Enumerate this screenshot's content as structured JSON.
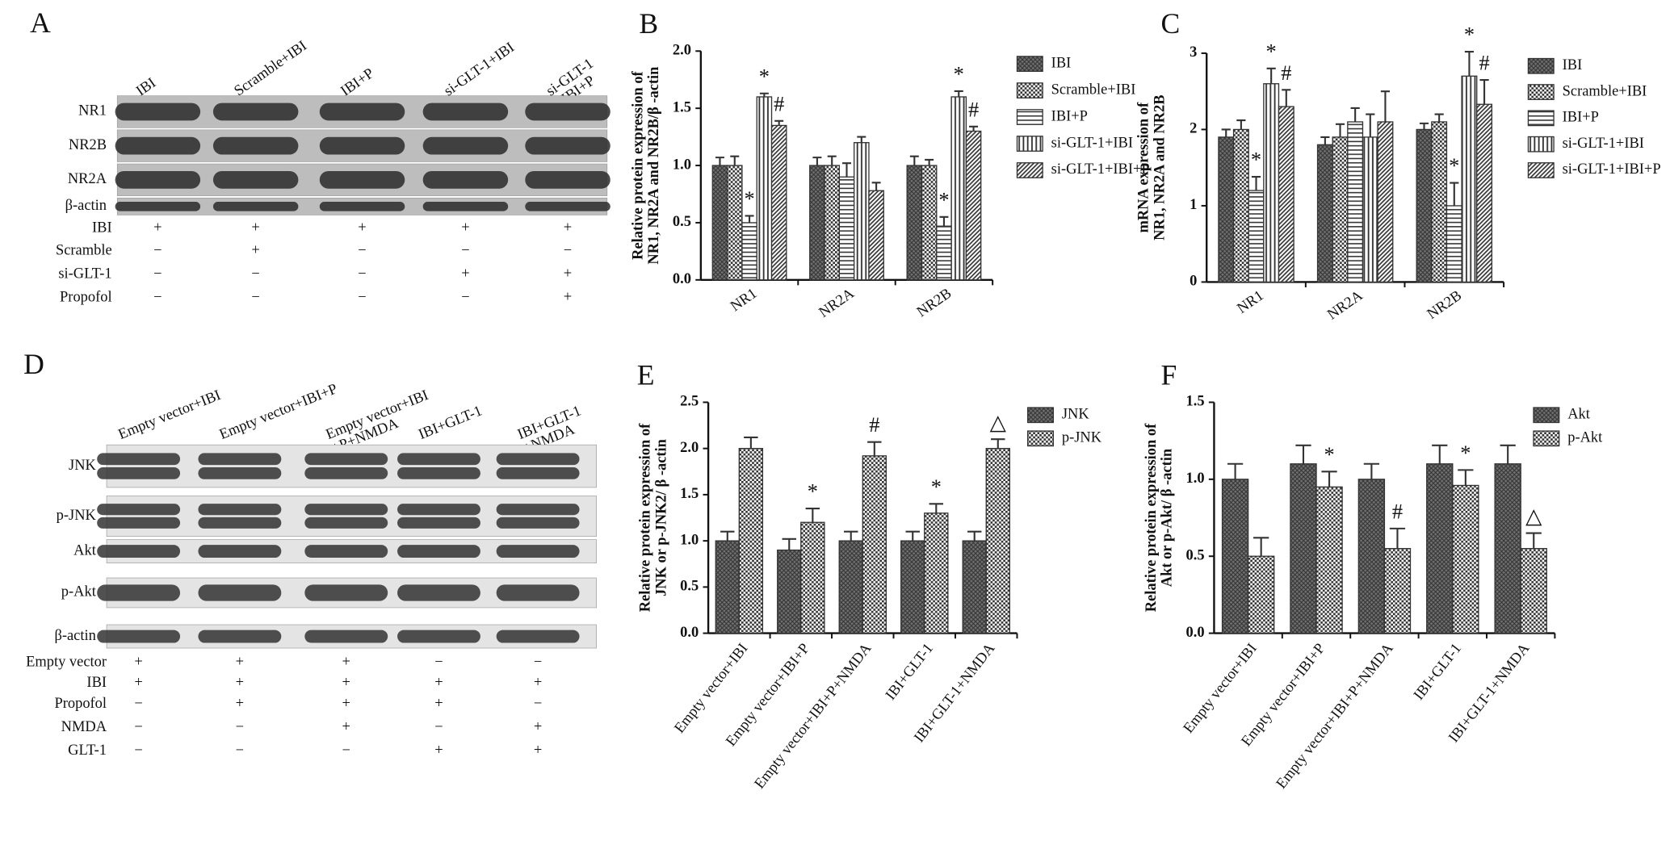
{
  "blot_panels": [
    {
      "panel": "A",
      "lanes": [
        [
          "IBI"
        ],
        [
          "Scramble+IBI"
        ],
        [
          "IBI+P"
        ],
        [
          "si-GLT-1+IBI"
        ],
        [
          "si-GLT-1",
          "+IBI+P"
        ]
      ],
      "rows": [
        "NR1",
        "NR2B",
        "NR2A",
        "β-actin"
      ],
      "treatments": [
        {
          "label": "IBI",
          "signs": [
            "+",
            "+",
            "+",
            "+",
            "+"
          ]
        },
        {
          "label": "Scramble",
          "signs": [
            "−",
            "+",
            "−",
            "−",
            "−"
          ]
        },
        {
          "label": "si-GLT-1",
          "signs": [
            "−",
            "−",
            "−",
            "+",
            "+"
          ]
        },
        {
          "label": "Propofol",
          "signs": [
            "−",
            "−",
            "−",
            "−",
            "+"
          ]
        }
      ]
    },
    {
      "panel": "D",
      "lanes": [
        [
          "Empty vector+IBI"
        ],
        [
          "Empty vector+IBI+P"
        ],
        [
          "Empty vector+IBI",
          "+P+NMDA"
        ],
        [
          "IBI+GLT-1"
        ],
        [
          "IBI+GLT-1",
          "+NMDA"
        ]
      ],
      "rows": [
        "JNK",
        "p-JNK",
        "Akt",
        "p-Akt",
        "β-actin"
      ],
      "treatments": [
        {
          "label": "Empty vector",
          "signs": [
            "+",
            "+",
            "+",
            "−",
            "−"
          ]
        },
        {
          "label": "IBI",
          "signs": [
            "+",
            "+",
            "+",
            "+",
            "+"
          ]
        },
        {
          "label": "Propofol",
          "signs": [
            "−",
            "+",
            "+",
            "+",
            "−"
          ]
        },
        {
          "label": "NMDA",
          "signs": [
            "−",
            "−",
            "+",
            "−",
            "+"
          ]
        },
        {
          "label": "GLT-1",
          "signs": [
            "−",
            "−",
            "−",
            "+",
            "+"
          ]
        }
      ]
    }
  ],
  "chart_data": [
    {
      "panel": "B",
      "type": "bar",
      "legend": "right",
      "ylabel": [
        "Relative protein expression of",
        "NR1, NR2A and NR2B/β -actin"
      ],
      "categories": [
        "NR1",
        "NR2A",
        "NR2B"
      ],
      "ylim": [
        0,
        2
      ],
      "yticks": [
        {
          "value": 0,
          "label": "0.0"
        },
        0.5,
        {
          "value": 1,
          "label": "1.0"
        },
        1.5,
        {
          "value": 2,
          "label": "2.0"
        }
      ],
      "series": [
        {
          "name": "IBI",
          "color": "#333333",
          "pattern": "crosshatch",
          "values": [
            1.0,
            1.0,
            1.0
          ],
          "errors": [
            0.07,
            0.07,
            0.08
          ]
        },
        {
          "name": "Scramble+IBI",
          "color": "#333333",
          "pattern": "checker",
          "values": [
            1.0,
            1.0,
            1.0
          ],
          "errors": [
            0.08,
            0.08,
            0.05
          ]
        },
        {
          "name": "IBI+P",
          "color": "#333333",
          "pattern": "horizontal",
          "values": [
            0.5,
            0.9,
            0.47
          ],
          "errors": [
            0.06,
            0.12,
            0.08
          ],
          "annotations": [
            "*",
            null,
            "*"
          ]
        },
        {
          "name": "si-GLT-1+IBI",
          "color": "#333333",
          "pattern": "vertical",
          "values": [
            1.6,
            1.2,
            1.6
          ],
          "errors": [
            0.03,
            0.05,
            0.05
          ],
          "annotations": [
            "*",
            null,
            "*"
          ]
        },
        {
          "name": "si-GLT-1+IBI+P",
          "color": "#333333",
          "pattern": "diagonal",
          "values": [
            1.35,
            0.78,
            1.3
          ],
          "errors": [
            0.04,
            0.07,
            0.04
          ],
          "annotations": [
            "#",
            null,
            "#"
          ]
        }
      ]
    },
    {
      "panel": "C",
      "type": "bar",
      "legend": "right",
      "ylabel": [
        "mRNA expression of",
        "NR1, NR2A and NR2B"
      ],
      "categories": [
        "NR1",
        "NR2A",
        "NR2B"
      ],
      "ylim": [
        0,
        3
      ],
      "yticks": [
        0,
        1,
        2,
        3
      ],
      "series": [
        {
          "name": "IBI",
          "color": "#333333",
          "pattern": "crosshatch",
          "values": [
            1.9,
            1.8,
            2.0
          ],
          "errors": [
            0.1,
            0.1,
            0.08
          ]
        },
        {
          "name": "Scramble+IBI",
          "color": "#333333",
          "pattern": "checker",
          "values": [
            2.0,
            1.9,
            2.1
          ],
          "errors": [
            0.12,
            0.17,
            0.1
          ]
        },
        {
          "name": "IBI+P",
          "color": "#333333",
          "pattern": "horizontal",
          "values": [
            1.2,
            2.1,
            1.0
          ],
          "errors": [
            0.18,
            0.18,
            0.3
          ],
          "annotations": [
            "*",
            null,
            "*"
          ]
        },
        {
          "name": "si-GLT-1+IBI",
          "color": "#333333",
          "pattern": "vertical",
          "values": [
            2.6,
            1.9,
            2.7
          ],
          "errors": [
            0.2,
            0.3,
            0.32
          ],
          "annotations": [
            "*",
            null,
            "*"
          ]
        },
        {
          "name": "si-GLT-1+IBI+P",
          "color": "#333333",
          "pattern": "diagonal",
          "values": [
            2.3,
            2.1,
            2.33
          ],
          "errors": [
            0.22,
            0.4,
            0.32
          ],
          "annotations": [
            "#",
            null,
            "#"
          ]
        }
      ]
    },
    {
      "panel": "E",
      "type": "bar",
      "legend": "right",
      "ylabel": [
        "Relative protein expression of",
        "JNK or p-JNK2/ β -actin"
      ],
      "categories": [
        "Empty vector+IBI",
        "Empty vector+IBI+P",
        "Empty vector+IBI+P+NMDA",
        "IBI+GLT-1",
        "IBI+GLT-1+NMDA"
      ],
      "ylim": [
        0,
        2.5
      ],
      "yticks": [
        {
          "value": 0,
          "label": "0.0"
        },
        0.5,
        {
          "value": 1,
          "label": "1.0"
        },
        1.5,
        {
          "value": 2,
          "label": "2.0"
        },
        2.5
      ],
      "series": [
        {
          "name": "JNK",
          "color": "#333333",
          "pattern": "crosshatch",
          "values": [
            1.0,
            0.9,
            1.0,
            1.0,
            1.0
          ],
          "errors": [
            0.1,
            0.12,
            0.1,
            0.1,
            0.1
          ]
        },
        {
          "name": "p-JNK",
          "color": "#333333",
          "pattern": "checker",
          "values": [
            2.0,
            1.2,
            1.92,
            1.3,
            2.0
          ],
          "errors": [
            0.12,
            0.15,
            0.15,
            0.1,
            0.1
          ],
          "annotations": [
            null,
            "*",
            "#",
            "*",
            "△"
          ]
        }
      ]
    },
    {
      "panel": "F",
      "type": "bar",
      "legend": "right",
      "ylabel": [
        "Relative protein expression of",
        "Akt or p-Akt/ β -actin"
      ],
      "categories": [
        "Empty vector+IBI",
        "Empty vector+IBI+P",
        "Empty vector+IBI+P+NMDA",
        "IBI+GLT-1",
        "IBI+GLT-1+NMDA"
      ],
      "ylim": [
        0,
        1.5
      ],
      "yticks": [
        {
          "value": 0,
          "label": "0.0"
        },
        0.5,
        {
          "value": 1,
          "label": "1.0"
        },
        1.5
      ],
      "series": [
        {
          "name": "Akt",
          "color": "#333333",
          "pattern": "crosshatch",
          "values": [
            1.0,
            1.1,
            1.0,
            1.1,
            1.1
          ],
          "errors": [
            0.1,
            0.12,
            0.1,
            0.12,
            0.12
          ]
        },
        {
          "name": "p-Akt",
          "color": "#333333",
          "pattern": "checker",
          "values": [
            0.5,
            0.95,
            0.55,
            0.96,
            0.55
          ],
          "errors": [
            0.12,
            0.1,
            0.13,
            0.1,
            0.1
          ],
          "annotations": [
            null,
            "*",
            "#",
            "*",
            "△"
          ]
        }
      ]
    }
  ]
}
